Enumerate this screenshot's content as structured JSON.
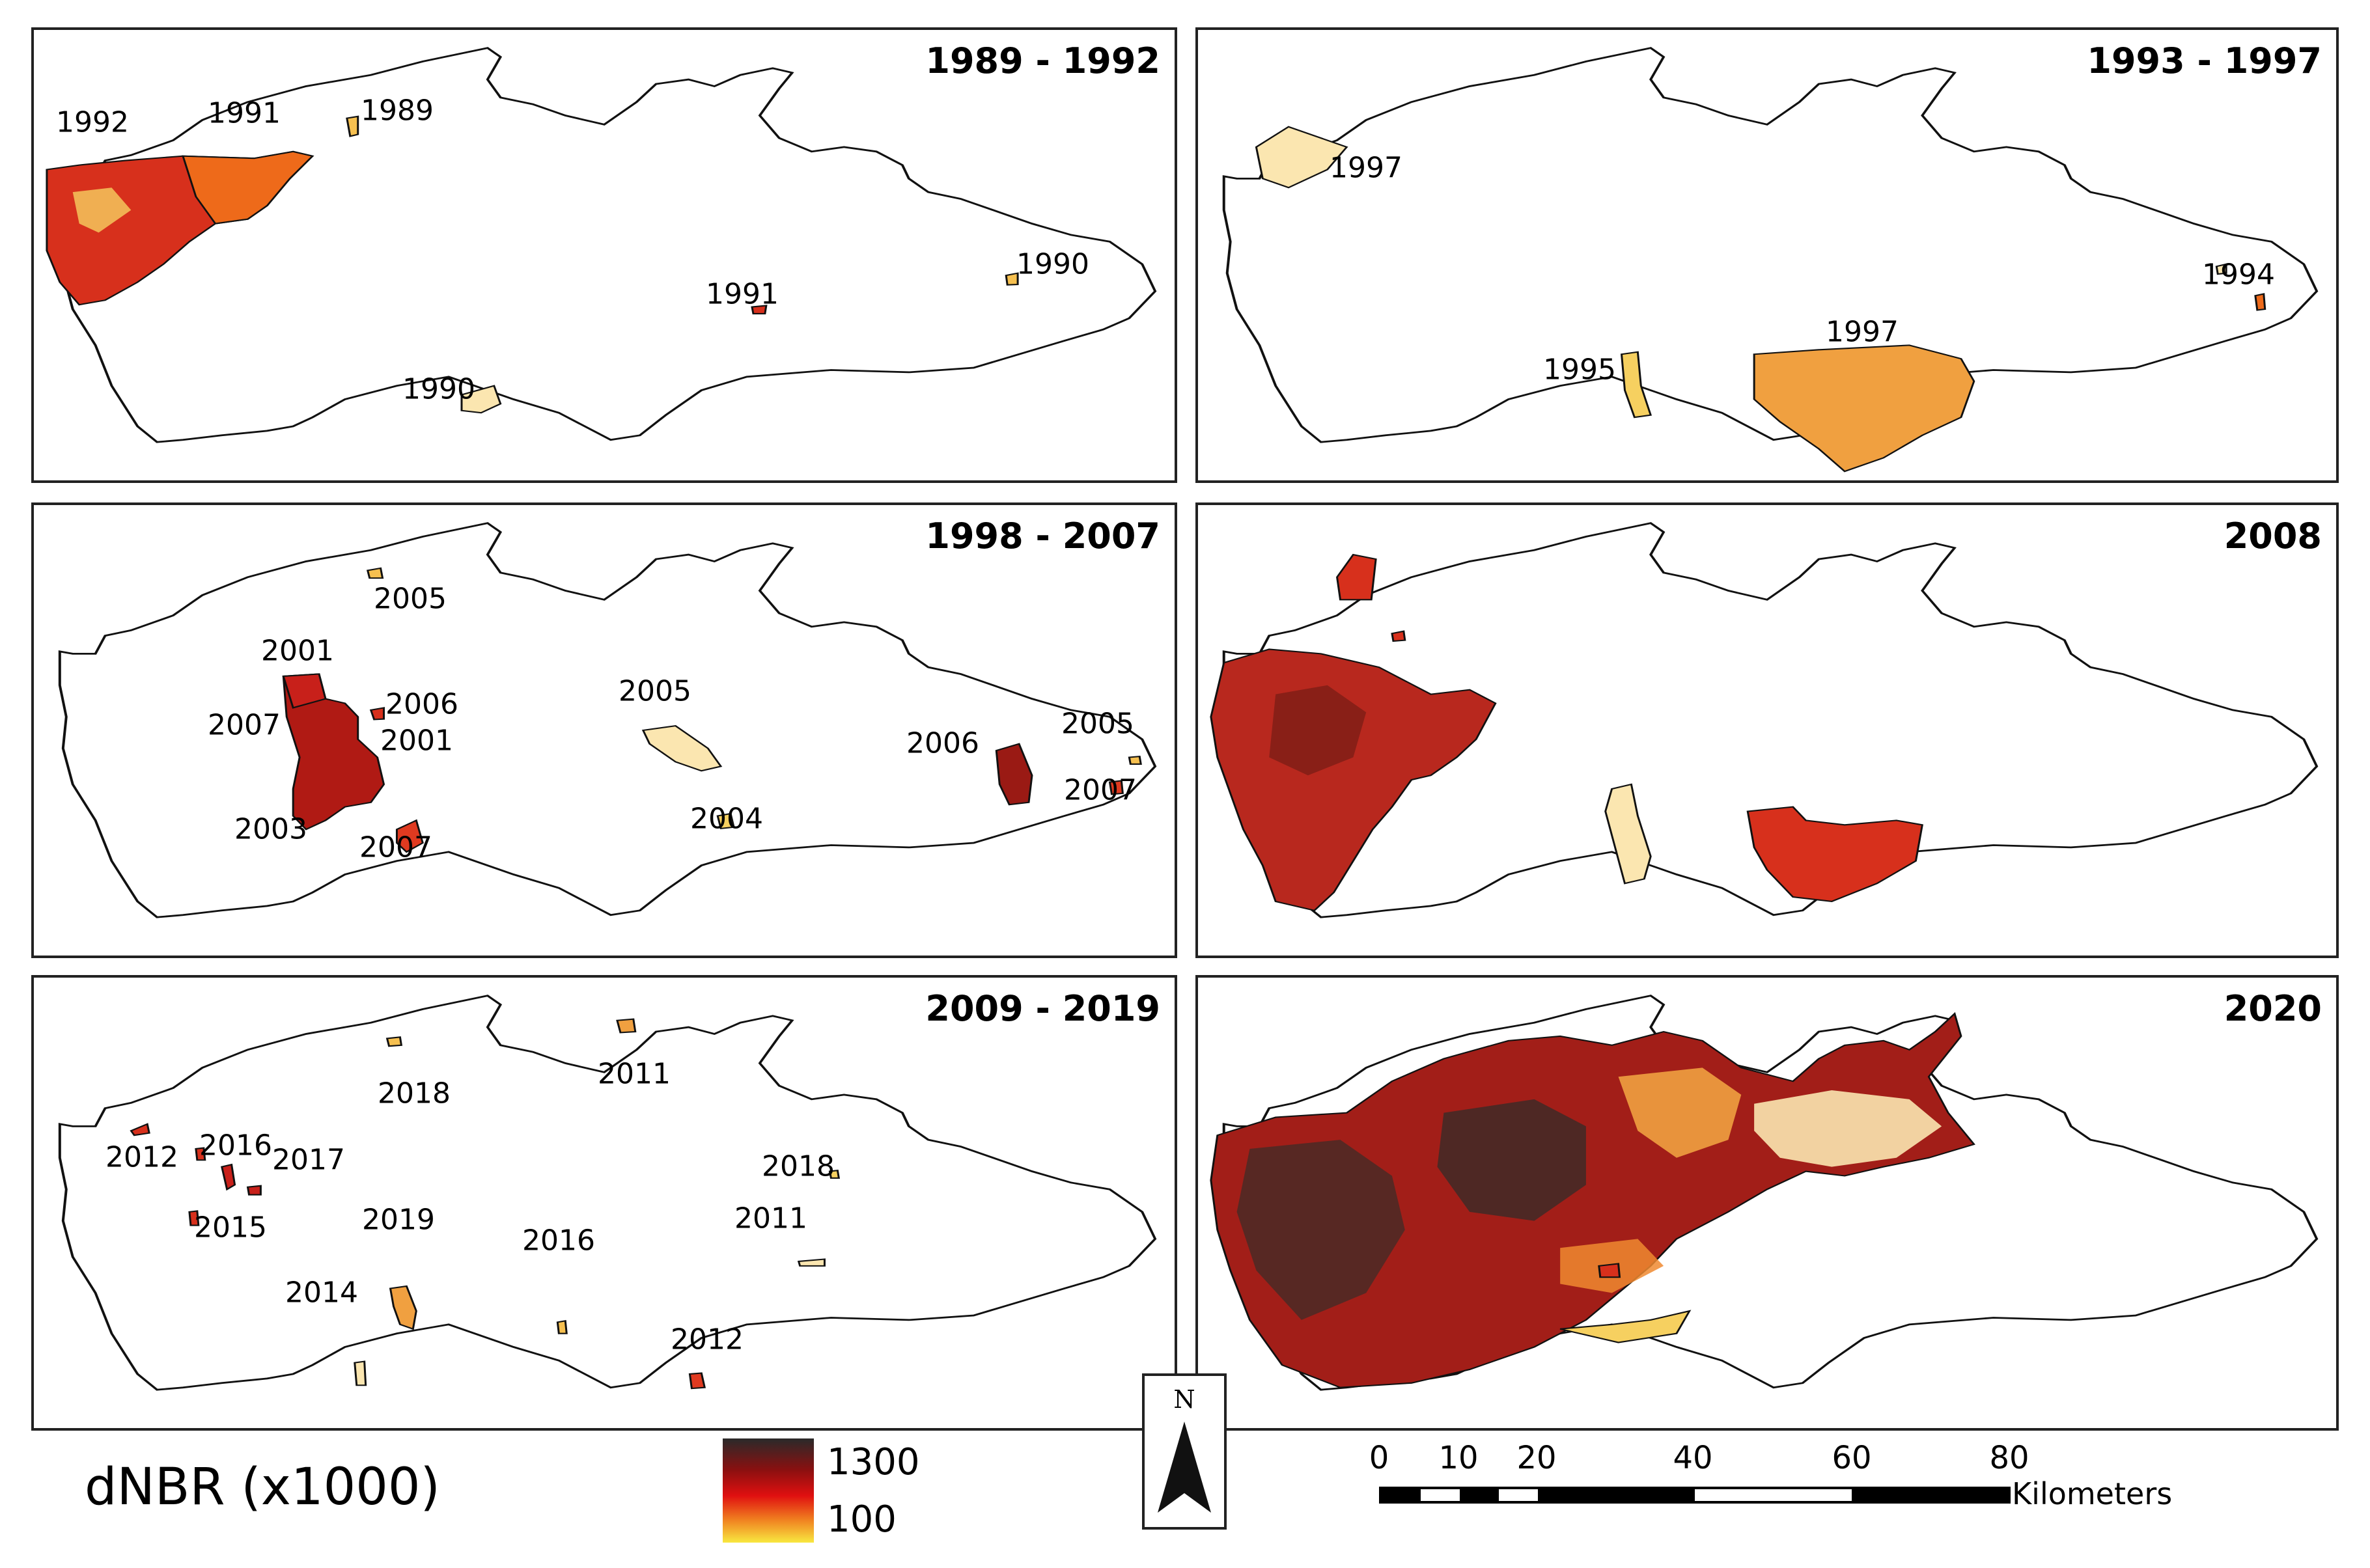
{
  "panels": [
    {
      "title": "1989 - 1992",
      "labels": [
        "1992",
        "1991",
        "1989",
        "1991",
        "1990",
        "1990"
      ]
    },
    {
      "title": "1993 - 1997",
      "labels": [
        "1997",
        "1994",
        "1997",
        "1995"
      ]
    },
    {
      "title": "1998 - 2007",
      "labels": [
        "2005",
        "2001",
        "2006",
        "2007",
        "2001",
        "2005",
        "2006",
        "2005",
        "2003",
        "2007",
        "2004",
        "2007"
      ]
    },
    {
      "title": "2008",
      "labels": []
    },
    {
      "title": "2009 - 2019",
      "labels": [
        "2018",
        "2011",
        "2012",
        "2016",
        "2017",
        "2018",
        "2015",
        "2019",
        "2011",
        "2016",
        "2014",
        "2012"
      ]
    },
    {
      "title": "2020",
      "labels": []
    }
  ],
  "legend": {
    "title": "dNBR (x1000)",
    "max": "1300",
    "min": "100"
  },
  "north_arrow": {
    "label": "N"
  },
  "scale": {
    "ticks": [
      "0",
      "10",
      "20",
      "40",
      "60",
      "80"
    ],
    "unit": "Kilometers"
  },
  "colors": {
    "dark": "#3a2a28",
    "red": "#c8201a",
    "orange": "#ee6a1a",
    "yellow": "#f6d060",
    "pale": "#fbe6b0"
  }
}
